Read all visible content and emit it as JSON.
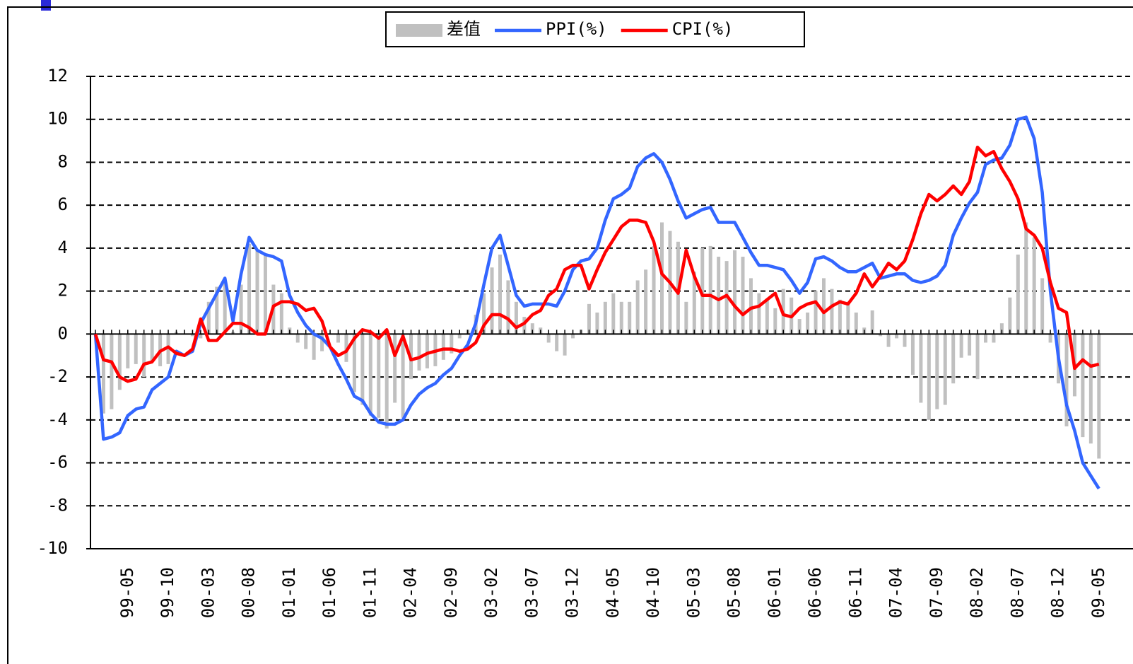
{
  "chart_data": {
    "type": "bar-line",
    "categories": [
      null,
      null,
      null,
      null,
      "99-05",
      null,
      null,
      null,
      null,
      "99-10",
      null,
      null,
      null,
      null,
      "00-03",
      null,
      null,
      null,
      null,
      "00-08",
      null,
      null,
      null,
      null,
      "01-01",
      null,
      null,
      null,
      null,
      "01-06",
      null,
      null,
      null,
      null,
      "01-11",
      null,
      null,
      null,
      null,
      "02-04",
      null,
      null,
      null,
      null,
      "02-09",
      null,
      null,
      null,
      null,
      "03-02",
      null,
      null,
      null,
      null,
      "03-07",
      null,
      null,
      null,
      null,
      "03-12",
      null,
      null,
      null,
      null,
      "04-05",
      null,
      null,
      null,
      null,
      "04-10",
      null,
      null,
      null,
      null,
      "05-03",
      null,
      null,
      null,
      null,
      "05-08",
      null,
      null,
      null,
      null,
      "06-01",
      null,
      null,
      null,
      null,
      "06-06",
      null,
      null,
      null,
      null,
      "06-11",
      null,
      null,
      null,
      null,
      "07-04",
      null,
      null,
      null,
      null,
      "07-09",
      null,
      null,
      null,
      null,
      "08-02",
      null,
      null,
      null,
      null,
      "08-07",
      null,
      null,
      null,
      null,
      "08-12",
      null,
      null,
      null,
      null,
      "09-05"
    ],
    "series": [
      {
        "name": "差值",
        "color": "#c0c0c0",
        "kind": "bar",
        "values": [
          0,
          -3.7,
          -3.5,
          -2.6,
          -1.6,
          -1.4,
          -2.0,
          -1.3,
          -1.5,
          -1.4,
          0.1,
          0,
          -0.1,
          -0.2,
          1.5,
          2.2,
          2.5,
          0.1,
          2.3,
          4.2,
          3.9,
          3.7,
          2.3,
          1.9,
          0.3,
          -0.4,
          -0.7,
          -1.2,
          -0.8,
          0,
          -0.4,
          -1.3,
          -2.7,
          -3.3,
          -3.8,
          -3.9,
          -4.4,
          -3.2,
          -3.9,
          -2.1,
          -1.7,
          -1.6,
          -1.5,
          -1.2,
          -0.9,
          -0.2,
          0.2,
          0.9,
          1.9,
          3.1,
          3.7,
          2.5,
          1.5,
          0.8,
          0.5,
          0.3,
          -0.4,
          -0.8,
          -1.0,
          -0.2,
          0.2,
          1.4,
          1.0,
          1.5,
          1.9,
          1.5,
          1.5,
          2.5,
          3.0,
          4.1,
          5.2,
          4.8,
          4.3,
          1.5,
          2.9,
          4.0,
          4.1,
          3.6,
          3.4,
          3.9,
          3.6,
          2.6,
          1.9,
          1.6,
          1.2,
          2.1,
          1.7,
          0.7,
          1.0,
          2.0,
          2.6,
          2.1,
          1.6,
          1.5,
          1.0,
          0.3,
          1.1,
          -0.1,
          -0.6,
          -0.2,
          -0.6,
          -1.9,
          -3.2,
          -4.0,
          -3.5,
          -3.3,
          -2.3,
          -1.1,
          -1.0,
          -2.1,
          -0.4,
          -0.4,
          0.5,
          1.7,
          3.7,
          5.2,
          4.5,
          2.6,
          -0.4,
          -2.3,
          -4.3,
          -2.9,
          -4.8,
          -5.1,
          -5.8
        ]
      },
      {
        "name": "PPI(%)",
        "color": "#3366ff",
        "kind": "line",
        "values": [
          0,
          -4.9,
          -4.8,
          -4.6,
          -3.8,
          -3.5,
          -3.4,
          -2.6,
          -2.3,
          -2.0,
          -0.8,
          -1.0,
          -0.8,
          0.5,
          1.2,
          1.9,
          2.6,
          0.6,
          2.8,
          4.5,
          3.9,
          3.7,
          3.6,
          3.4,
          1.8,
          1.0,
          0.4,
          0.0,
          -0.2,
          -0.6,
          -1.4,
          -2.1,
          -2.9,
          -3.1,
          -3.7,
          -4.1,
          -4.2,
          -4.2,
          -4.0,
          -3.3,
          -2.8,
          -2.5,
          -2.3,
          -1.9,
          -1.6,
          -1.0,
          -0.5,
          0.5,
          2.3,
          4.0,
          4.6,
          3.2,
          1.8,
          1.3,
          1.4,
          1.4,
          1.4,
          1.3,
          2.0,
          3.0,
          3.4,
          3.5,
          4.0,
          5.3,
          6.3,
          6.5,
          6.8,
          7.8,
          8.2,
          8.4,
          8.0,
          7.2,
          6.2,
          5.4,
          5.6,
          5.8,
          5.9,
          5.2,
          5.2,
          5.2,
          4.5,
          3.8,
          3.2,
          3.2,
          3.1,
          3.0,
          2.5,
          1.9,
          2.4,
          3.5,
          3.6,
          3.4,
          3.1,
          2.9,
          2.9,
          3.1,
          3.3,
          2.6,
          2.7,
          2.8,
          2.8,
          2.5,
          2.4,
          2.5,
          2.7,
          3.2,
          4.6,
          5.4,
          6.1,
          6.6,
          7.9,
          8.1,
          8.2,
          8.8,
          10.0,
          10.1,
          9.1,
          6.6,
          2.0,
          -1.1,
          -3.3,
          -4.5,
          -6.0,
          -6.6,
          -7.2
        ]
      },
      {
        "name": "CPI(%)",
        "color": "#ff0000",
        "kind": "line",
        "values": [
          0,
          -1.2,
          -1.3,
          -2.0,
          -2.2,
          -2.1,
          -1.4,
          -1.3,
          -0.8,
          -0.6,
          -0.9,
          -1.0,
          -0.7,
          0.7,
          -0.3,
          -0.3,
          0.1,
          0.5,
          0.5,
          0.3,
          0.0,
          0.0,
          1.3,
          1.5,
          1.5,
          1.4,
          1.1,
          1.2,
          0.6,
          -0.6,
          -1.0,
          -0.8,
          -0.2,
          0.2,
          0.1,
          -0.2,
          0.2,
          -1.0,
          -0.1,
          -1.2,
          -1.1,
          -0.9,
          -0.8,
          -0.7,
          -0.7,
          -0.8,
          -0.7,
          -0.4,
          0.4,
          0.9,
          0.9,
          0.7,
          0.3,
          0.5,
          0.9,
          1.1,
          1.8,
          2.1,
          3.0,
          3.2,
          3.2,
          2.1,
          3.0,
          3.8,
          4.4,
          5.0,
          5.3,
          5.3,
          5.2,
          4.3,
          2.8,
          2.4,
          1.9,
          3.9,
          2.7,
          1.8,
          1.8,
          1.6,
          1.8,
          1.3,
          0.9,
          1.2,
          1.3,
          1.6,
          1.9,
          0.9,
          0.8,
          1.2,
          1.4,
          1.5,
          1.0,
          1.3,
          1.5,
          1.4,
          1.9,
          2.8,
          2.2,
          2.7,
          3.3,
          3.0,
          3.4,
          4.4,
          5.6,
          6.5,
          6.2,
          6.5,
          6.9,
          6.5,
          7.1,
          8.7,
          8.3,
          8.5,
          7.7,
          7.1,
          6.3,
          4.9,
          4.6,
          4.0,
          2.4,
          1.2,
          1.0,
          -1.6,
          -1.2,
          -1.5,
          -1.4
        ]
      }
    ],
    "ylim": [
      -10,
      12
    ],
    "yticks": [
      -10,
      -8,
      -6,
      -4,
      -2,
      0,
      2,
      4,
      6,
      8,
      10,
      12
    ],
    "grid": true,
    "legend": "top"
  }
}
